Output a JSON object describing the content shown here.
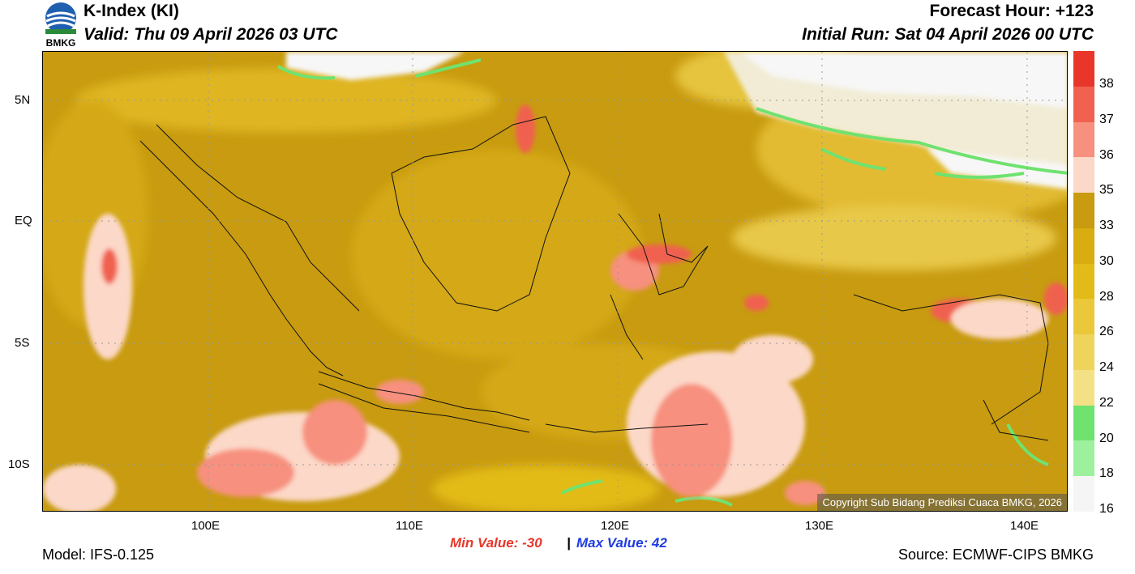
{
  "header": {
    "logo_text": "BMKG",
    "title": "K-Index (KI)",
    "valid": "Valid: Thu 09 April 2026 03 UTC",
    "forecast_hour": "Forecast Hour: +123",
    "initial_run": "Initial Run: Sat 04 April 2026 00 UTC"
  },
  "axes": {
    "y_ticks": [
      "5N",
      "EQ",
      "5S",
      "10S"
    ],
    "x_ticks": [
      "100E",
      "110E",
      "120E",
      "130E",
      "140E"
    ]
  },
  "colorbar": {
    "labels": [
      "38",
      "37",
      "36",
      "35",
      "33",
      "30",
      "28",
      "26",
      "24",
      "22",
      "20",
      "18",
      "16"
    ],
    "colors": [
      "#e8372a",
      "#f0614f",
      "#f7907e",
      "#fcd8c8",
      "#c89b10",
      "#d9ac10",
      "#e3bb18",
      "#eac83a",
      "#efd45c",
      "#f4e185",
      "#6fe26f",
      "#9df09d",
      "#f5f5f5"
    ]
  },
  "stats": {
    "min_value": "Min Value: -30",
    "separator": "|",
    "max_value": "Max Value:  42"
  },
  "footer": {
    "model": "Model: IFS-0.125",
    "source": "Source: ECMWF-CIPS BMKG",
    "copyright": "Copyright Sub Bidang Prediksi Cuaca BMKG, 2026"
  }
}
